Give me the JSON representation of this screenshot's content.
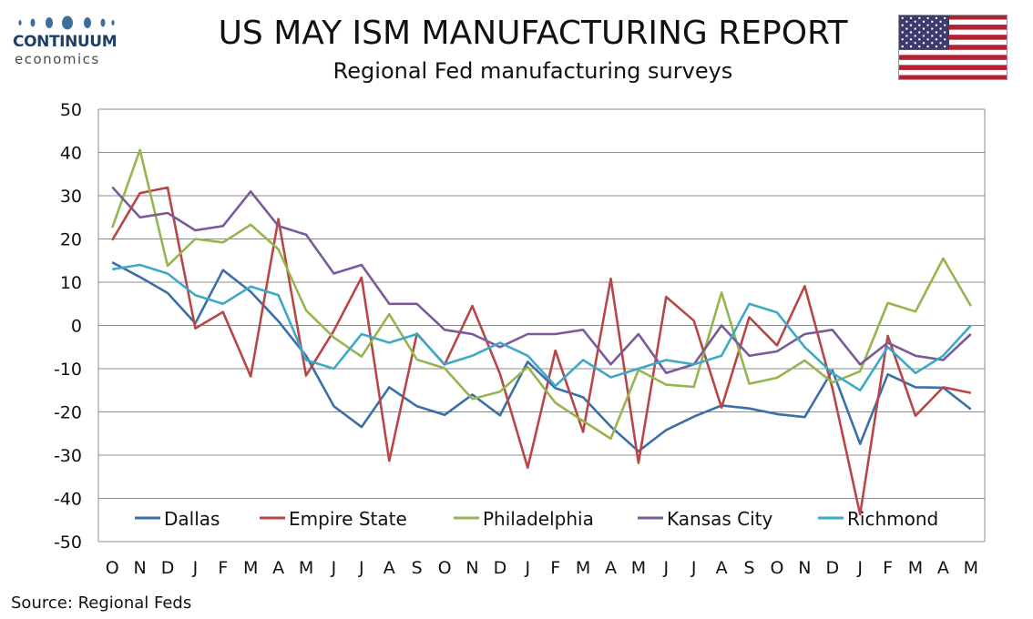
{
  "header": {
    "logo_name": "CONTINUUM",
    "logo_sub": "economics",
    "title": "US MAY ISM MANUFACTURING REPORT",
    "subtitle": "Regional Fed manufacturing surveys",
    "flag_icon": "us-flag-icon"
  },
  "footer": {
    "source": "Source: Regional Feds"
  },
  "colors": {
    "Dallas": "#3a6fa8",
    "Empire State": "#b94646",
    "Philadelphia": "#95b54e",
    "Kansas City": "#7a5a99",
    "Richmond": "#3ea9c6",
    "grid": "#8c8c8c",
    "logo_dot": "#3b6e99"
  },
  "chart_data": {
    "type": "line",
    "title": "Regional Fed manufacturing surveys",
    "xlabel": "",
    "ylabel": "",
    "ylim": [
      -50,
      50
    ],
    "yticks": [
      -50,
      -40,
      -30,
      -20,
      -10,
      0,
      10,
      20,
      30,
      40,
      50
    ],
    "grid": true,
    "legend_position": "bottom-inside",
    "categories": [
      "O",
      "N",
      "D",
      "J",
      "F",
      "M",
      "A",
      "M",
      "J",
      "J",
      "A",
      "S",
      "O",
      "N",
      "D",
      "J",
      "F",
      "M",
      "A",
      "M",
      "J",
      "J",
      "A",
      "S",
      "O",
      "N",
      "D",
      "J",
      "F",
      "M",
      "A",
      "M"
    ],
    "series": [
      {
        "name": "Dallas",
        "values": [
          14.6,
          11.2,
          7.5,
          0.5,
          12.8,
          7.8,
          1.0,
          -7.0,
          -18.7,
          -23.5,
          -14.3,
          -18.7,
          -20.7,
          -16.0,
          -20.8,
          -8.4,
          -14.5,
          -16.6,
          -23.4,
          -29.1,
          -24.2,
          -21.1,
          -18.5,
          -19.2,
          -20.5,
          -21.2,
          -10.4,
          -27.4,
          -11.3,
          -14.3,
          -14.4,
          -19.4
        ]
      },
      {
        "name": "Empire State",
        "values": [
          19.7,
          30.6,
          31.9,
          -0.7,
          3.1,
          -11.8,
          24.6,
          -11.6,
          -1.2,
          11.1,
          -31.3,
          -1.9,
          -9.1,
          4.5,
          -11.2,
          -32.9,
          -5.8,
          -24.6,
          10.8,
          -31.8,
          6.6,
          1.1,
          -19.0,
          1.9,
          -4.6,
          9.1,
          -14.5,
          -43.7,
          -2.4,
          -20.9,
          -14.3,
          -15.6
        ]
      },
      {
        "name": "Philadelphia",
        "values": [
          22.6,
          40.6,
          13.8,
          20.0,
          19.2,
          23.3,
          17.6,
          3.5,
          -2.8,
          -7.2,
          2.6,
          -7.9,
          -9.9,
          -17.0,
          -15.3,
          -9.6,
          -17.9,
          -22.1,
          -26.2,
          -10.3,
          -13.7,
          -14.2,
          7.6,
          -13.5,
          -12.1,
          -8.1,
          -13.2,
          -10.6,
          5.2,
          3.2,
          15.5,
          4.5
        ]
      },
      {
        "name": "Kansas City",
        "values": [
          32.0,
          25.0,
          26.0,
          22.0,
          23.0,
          31.0,
          23.0,
          21.0,
          12.0,
          14.0,
          5.0,
          5.0,
          -1.0,
          -2.0,
          -5.0,
          -2.0,
          -2.0,
          -1.0,
          -9.0,
          -2.0,
          -11.0,
          -9.0,
          0.0,
          -7.0,
          -6.0,
          -2.0,
          -1.0,
          -9.0,
          -4.0,
          -7.0,
          -8.0,
          -2.0
        ]
      },
      {
        "name": "Richmond",
        "values": [
          13.0,
          14.0,
          12.0,
          7.0,
          5.0,
          9.0,
          7.0,
          -8.0,
          -10.0,
          -2.0,
          -4.0,
          -2.0,
          -9.0,
          -7.0,
          -4.0,
          -7.0,
          -14.0,
          -8.0,
          -12.0,
          -10.0,
          -8.0,
          -9.0,
          -7.0,
          5.0,
          3.0,
          -5.0,
          -11.0,
          -15.0,
          -5.0,
          -11.0,
          -7.0,
          0.0
        ]
      }
    ]
  }
}
